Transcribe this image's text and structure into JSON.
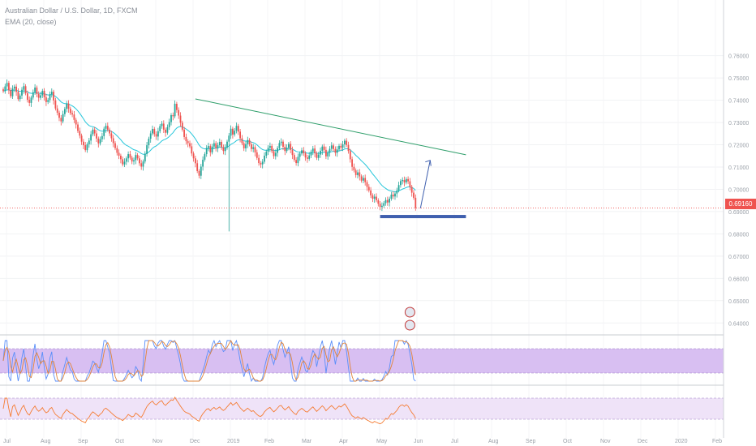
{
  "header": {
    "title": "Australian Dollar / U.S. Dollar, 1D, FXCM",
    "indicator": "EMA (20, close)"
  },
  "last_price": "0.69160",
  "colors": {
    "up": "#26a69a",
    "down": "#ef5350",
    "ema": "#26c6da",
    "trendline": "#2e9e6a",
    "support": "#3f5fae",
    "stoch_k": "#5b8ff9",
    "stoch_d": "#e0843b",
    "stoch_band": "#d8bff2",
    "rsi": "#f57c33",
    "rsi_band": "#efe3f8",
    "price_line": "#ef5350"
  },
  "chart_data": {
    "type": "candlestick",
    "symbol": "AUDUSD",
    "timeframe": "1D",
    "price_axis_ticks": [
      "0.76000",
      "0.75000",
      "0.74000",
      "0.73000",
      "0.72000",
      "0.71000",
      "0.70000",
      "0.69000",
      "0.68000",
      "0.67000",
      "0.66000",
      "0.65000",
      "0.64000"
    ],
    "time_axis_ticks": [
      "Jul",
      "Aug",
      "Sep",
      "Oct",
      "Nov",
      "Dec",
      "2019",
      "Feb",
      "Mar",
      "Apr",
      "May",
      "Jun",
      "Jul",
      "Aug",
      "Sep",
      "Oct",
      "Nov",
      "Dec",
      "2020",
      "Feb"
    ],
    "ylim": [
      0.635,
      0.785
    ],
    "closes": [
      0.7441,
      0.7462,
      0.7478,
      0.7445,
      0.7418,
      0.7452,
      0.7461,
      0.7438,
      0.7405,
      0.7421,
      0.7447,
      0.7463,
      0.7431,
      0.7402,
      0.7388,
      0.7412,
      0.7436,
      0.7457,
      0.7428,
      0.7411,
      0.7422,
      0.7442,
      0.7413,
      0.7392,
      0.7401,
      0.7427,
      0.7438,
      0.7399,
      0.7363,
      0.7344,
      0.7321,
      0.7305,
      0.7338,
      0.7361,
      0.7385,
      0.7362,
      0.7342,
      0.7336,
      0.7312,
      0.7291,
      0.7262,
      0.7241,
      0.7214,
      0.7198,
      0.7176,
      0.7202,
      0.7219,
      0.7247,
      0.7268,
      0.7251,
      0.7228,
      0.7206,
      0.7225,
      0.7239,
      0.7272,
      0.7285,
      0.7268,
      0.7251,
      0.7229,
      0.7207,
      0.7185,
      0.7164,
      0.7151,
      0.7135,
      0.7112,
      0.7124,
      0.7139,
      0.7158,
      0.7142,
      0.7125,
      0.7131,
      0.7154,
      0.7139,
      0.7117,
      0.7102,
      0.7125,
      0.7159,
      0.7198,
      0.7227,
      0.7251,
      0.7271,
      0.7248,
      0.7237,
      0.7261,
      0.7284,
      0.7295,
      0.7268,
      0.7254,
      0.7279,
      0.7302,
      0.7333,
      0.7328,
      0.7384,
      0.7356,
      0.7331,
      0.7299,
      0.7268,
      0.7235,
      0.7216,
      0.7207,
      0.7193,
      0.7161,
      0.7139,
      0.7117,
      0.7082,
      0.7061,
      0.7102,
      0.7133,
      0.7158,
      0.7186,
      0.7194,
      0.7166,
      0.7192,
      0.7207,
      0.7185,
      0.7198,
      0.7213,
      0.7189,
      0.7172,
      0.7187,
      0.7214,
      0.7241,
      0.7272,
      0.7246,
      0.7263,
      0.7285,
      0.7259,
      0.7229,
      0.7207,
      0.7184,
      0.7203,
      0.7221,
      0.7202,
      0.7181,
      0.7189,
      0.7166,
      0.7141,
      0.7118,
      0.7112,
      0.7124,
      0.7151,
      0.7169,
      0.7186,
      0.7195,
      0.7171,
      0.7149,
      0.7164,
      0.7185,
      0.7208,
      0.7214,
      0.7191,
      0.7172,
      0.7187,
      0.7204,
      0.7177,
      0.7154,
      0.7132,
      0.7118,
      0.7146,
      0.7161,
      0.7175,
      0.7162,
      0.7143,
      0.7137,
      0.7152,
      0.7169,
      0.7183,
      0.7162,
      0.7141,
      0.7156,
      0.7173,
      0.7192,
      0.7177,
      0.7148,
      0.7165,
      0.7182,
      0.7197,
      0.7181,
      0.7164,
      0.7179,
      0.7195,
      0.7187,
      0.7202,
      0.7218,
      0.7199,
      0.7172,
      0.7135,
      0.7101,
      0.7085,
      0.7064,
      0.7076,
      0.7058,
      0.7039,
      0.7051,
      0.7032,
      0.7011,
      0.6995,
      0.6973,
      0.6958,
      0.6967,
      0.6951,
      0.6935,
      0.6921,
      0.6926,
      0.6938,
      0.6952,
      0.6941,
      0.6958,
      0.6976,
      0.6968,
      0.6981,
      0.6995,
      0.7019,
      0.7037,
      0.7042,
      0.7031,
      0.7046,
      0.7036,
      0.7011,
      0.6985,
      0.6962,
      0.6916
    ],
    "ema_period": 20,
    "annotations": [
      "descending trendline",
      "support zone",
      "projected up arrow"
    ],
    "oscillators": [
      {
        "name": "Stochastic",
        "band": [
          20,
          80
        ]
      },
      {
        "name": "RSI",
        "band": [
          30,
          70
        ]
      }
    ]
  }
}
